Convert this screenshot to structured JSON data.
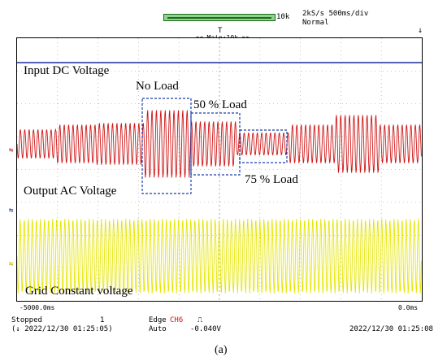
{
  "top": {
    "zoom_bar_label": "10k",
    "sample_rate": "2kS/s 500ms/div",
    "mode": "Normal",
    "trigger_marker": "T",
    "main_zoom_label": "<< Main:10k >>"
  },
  "labels": {
    "input_dc": "Input DC Voltage",
    "no_load": "No Load",
    "load_50": "50 % Load",
    "load_75": "75 % Load",
    "output_ac": "Output AC Voltage",
    "grid_constant": "Grid Constant voltage"
  },
  "axis": {
    "left_time": "-5000.0ms",
    "right_time": "0.0ms"
  },
  "status": {
    "state": "Stopped",
    "count": "1",
    "timestamp_left": "(↓ 2022/12/30 01:25:05)",
    "trigger_type": "Edge",
    "trigger_channel": "CH6",
    "trigger_mode": "Auto",
    "trigger_level": "-0.040V",
    "timestamp_right": "2022/12/30 01:25:08"
  },
  "caption": "(a)",
  "colors": {
    "dc_trace": "#1a2f9c",
    "ac_trace": "#d01616",
    "grid_trace": "#e6e600",
    "box": "#1a3fa8",
    "trigger_ch": "#d01616"
  }
}
